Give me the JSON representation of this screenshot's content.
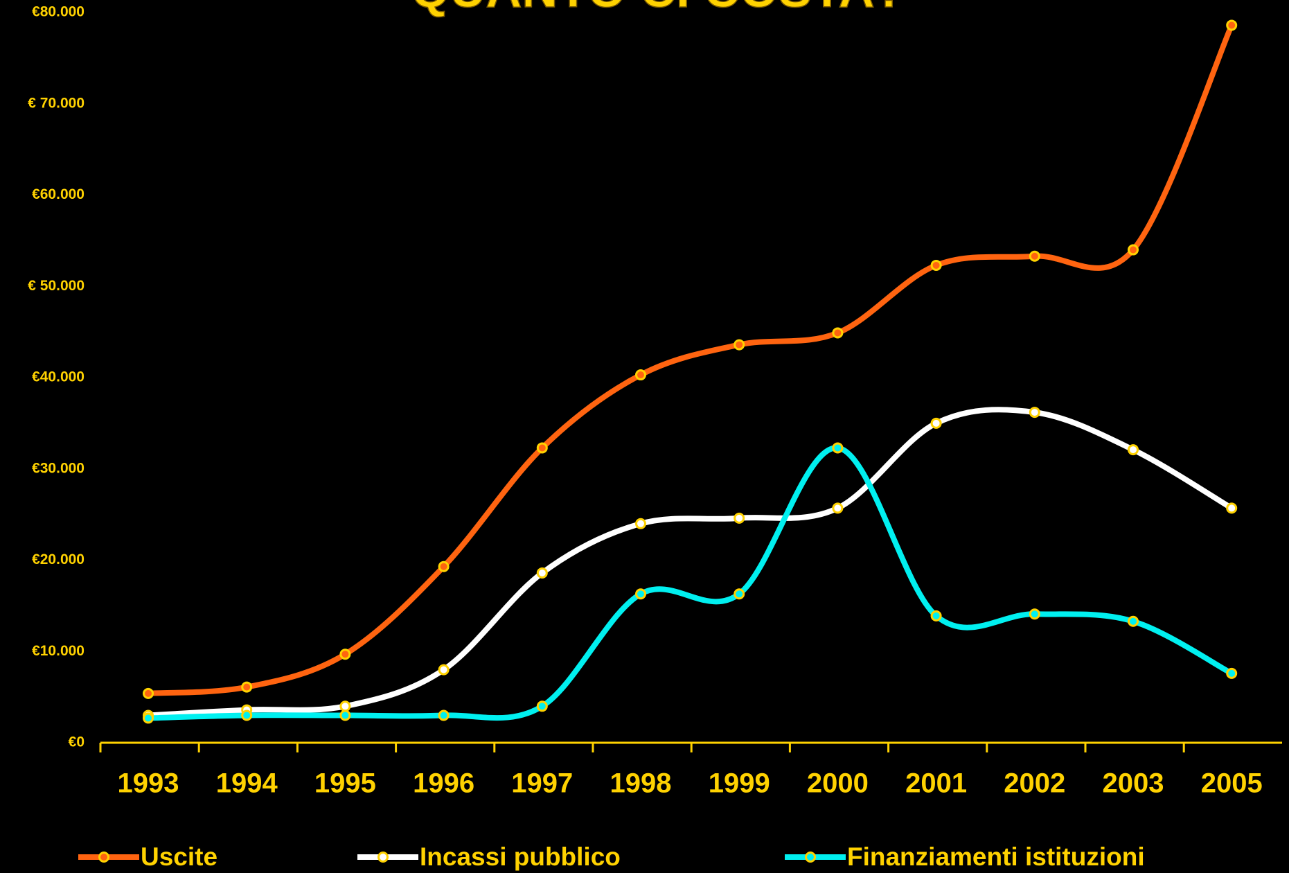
{
  "chart_data": {
    "type": "line",
    "title": "QUANTO CI COSTA?",
    "categories": [
      "1993",
      "1994",
      "1995",
      "1996",
      "1997",
      "1998",
      "1999",
      "2000",
      "2001",
      "2002",
      "2003",
      "2005"
    ],
    "series": [
      {
        "name": "Uscite",
        "color": "#ff6410",
        "values": [
          5400,
          6100,
          9700,
          19300,
          32300,
          40300,
          43600,
          44900,
          52300,
          53300,
          54000,
          78600
        ]
      },
      {
        "name": "Incassi pubblico",
        "color": "#ffffff",
        "values": [
          3000,
          3600,
          4000,
          8000,
          18600,
          24000,
          24600,
          25700,
          35000,
          36200,
          32100,
          25700
        ]
      },
      {
        "name": "Finanziamenti istituzioni",
        "color": "#00f0f0",
        "values": [
          2700,
          3000,
          3000,
          3000,
          4000,
          16300,
          16300,
          32300,
          13900,
          14100,
          13300,
          7600
        ]
      }
    ],
    "marker_color": "#ffd200",
    "ylim": [
      0,
      80000
    ],
    "yticks": [
      {
        "value": 0,
        "label": "€0"
      },
      {
        "value": 10000,
        "label": "€10.000"
      },
      {
        "value": 20000,
        "label": "€20.000"
      },
      {
        "value": 30000,
        "label": "€30.000"
      },
      {
        "value": 40000,
        "label": "€40.000"
      },
      {
        "value": 50000,
        "label": "€ 50.000"
      },
      {
        "value": 60000,
        "label": "€60.000"
      },
      {
        "value": 70000,
        "label": "€ 70.000"
      },
      {
        "value": 80000,
        "label": "€80.000"
      }
    ],
    "grid": false
  }
}
